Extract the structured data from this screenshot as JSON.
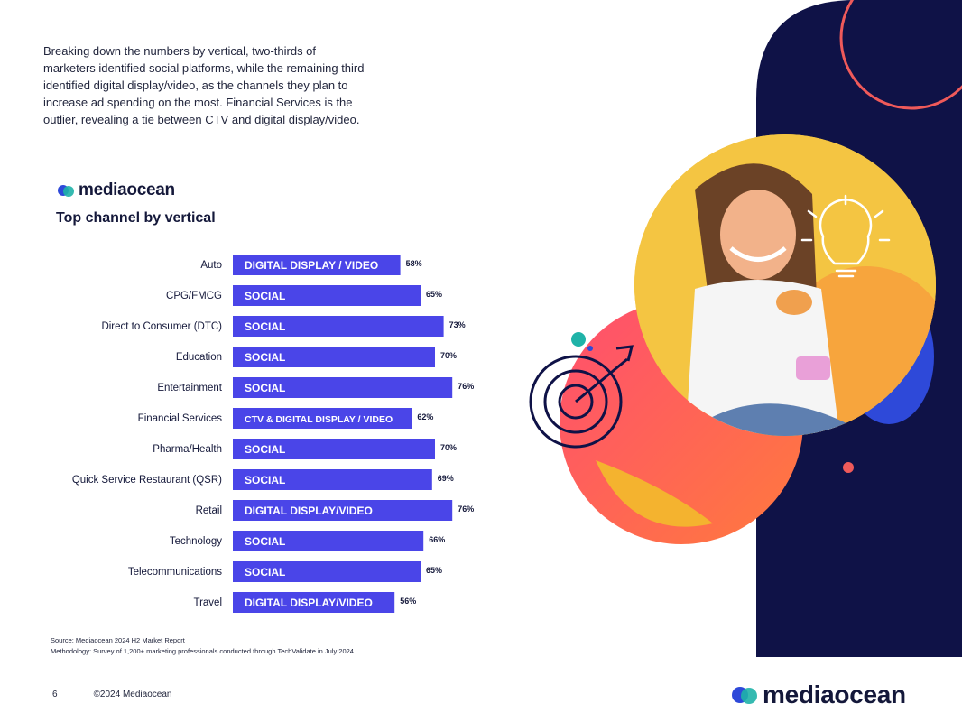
{
  "intro_text": "Breaking down the numbers by vertical, two-thirds of marketers identified social platforms, while the remaining third identified digital display/video, as the channels they plan to increase ad spending on the most. Financial Services is the outlier, revealing a tie between CTV and digital display/video.",
  "brand": {
    "name": "mediaocean"
  },
  "chart_data": {
    "type": "bar",
    "orientation": "horizontal",
    "title": "Top channel by vertical",
    "categories": [
      "Auto",
      "CPG/FMCG",
      "Direct to Consumer (DTC)",
      "Education",
      "Entertainment",
      "Financial Services",
      "Pharma/Health",
      "Quick Service Restaurant (QSR)",
      "Retail",
      "Technology",
      "Telecommunications",
      "Travel"
    ],
    "channels": [
      "DIGITAL DISPLAY / VIDEO",
      "SOCIAL",
      "SOCIAL",
      "SOCIAL",
      "SOCIAL",
      "CTV & DIGITAL DISPLAY / VIDEO",
      "SOCIAL",
      "SOCIAL",
      "DIGITAL DISPLAY/VIDEO",
      "SOCIAL",
      "SOCIAL",
      "DIGITAL DISPLAY/VIDEO"
    ],
    "values": [
      58,
      65,
      73,
      70,
      76,
      62,
      70,
      69,
      76,
      66,
      65,
      56
    ],
    "value_labels": [
      "58%",
      "65%",
      "73%",
      "70%",
      "76%",
      "62%",
      "70%",
      "69%",
      "76%",
      "66%",
      "65%",
      "56%"
    ],
    "xlim": [
      0,
      100
    ],
    "bar_color": "#4a45e8"
  },
  "notes": {
    "source": "Source: Mediaocean 2024 H2 Market Report",
    "methodology": "Methodology: Survey of 1,200+ marketing professionals conducted through TechValidate in July 2024"
  },
  "footer": {
    "page_number": "6",
    "copyright": "©2024 Mediaocean"
  },
  "colors": {
    "navy": "#0f1247",
    "yellow": "#f4c542",
    "pink": "#ee3a6a",
    "orange": "#f98a3a",
    "blue": "#2e49d9",
    "coral": "#ef5a5a",
    "teal": "#1fb3a8"
  }
}
